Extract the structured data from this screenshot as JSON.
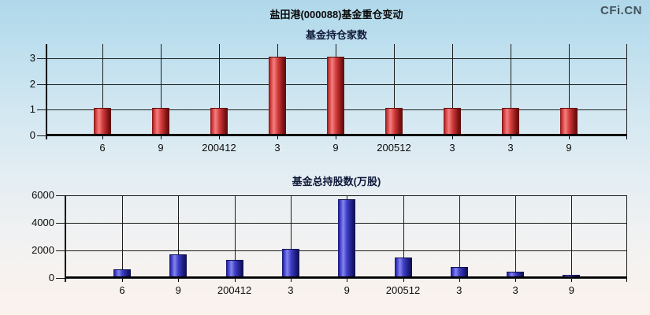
{
  "header": {
    "title": "盐田港(000088)基金重仓变动",
    "watermark": "CFi.CN"
  },
  "chart_data": [
    {
      "type": "bar",
      "title": "基金持仓家数",
      "categories": [
        "6",
        "9",
        "200412",
        "3",
        "9",
        "200512",
        "3",
        "3",
        "9"
      ],
      "values": [
        1,
        1,
        1,
        3,
        3,
        1,
        1,
        1,
        1
      ],
      "yticks": [
        0,
        1,
        2,
        3
      ],
      "ylim": [
        0,
        3.55
      ],
      "xlabel": "",
      "ylabel": "",
      "grid": true,
      "legend": "none",
      "bar_colors": {
        "light": "#f28080",
        "main": "#d43c3c",
        "dark": "#7c1212",
        "cap": "#5f0c0c"
      }
    },
    {
      "type": "bar",
      "title": "基金总持股数(万股)",
      "categories": [
        "6",
        "9",
        "200412",
        "3",
        "9",
        "200512",
        "3",
        "3",
        "9"
      ],
      "values": [
        500,
        1600,
        1200,
        2000,
        5600,
        1400,
        700,
        350,
        100
      ],
      "yticks": [
        0,
        2000,
        4000,
        6000
      ],
      "ylim": [
        0,
        6000
      ],
      "xlabel": "",
      "ylabel": "",
      "grid": true,
      "legend": "none",
      "bar_colors": {
        "light": "#8585ec",
        "main": "#3c3cc8",
        "dark": "#18186e",
        "cap": "#101050"
      }
    }
  ]
}
